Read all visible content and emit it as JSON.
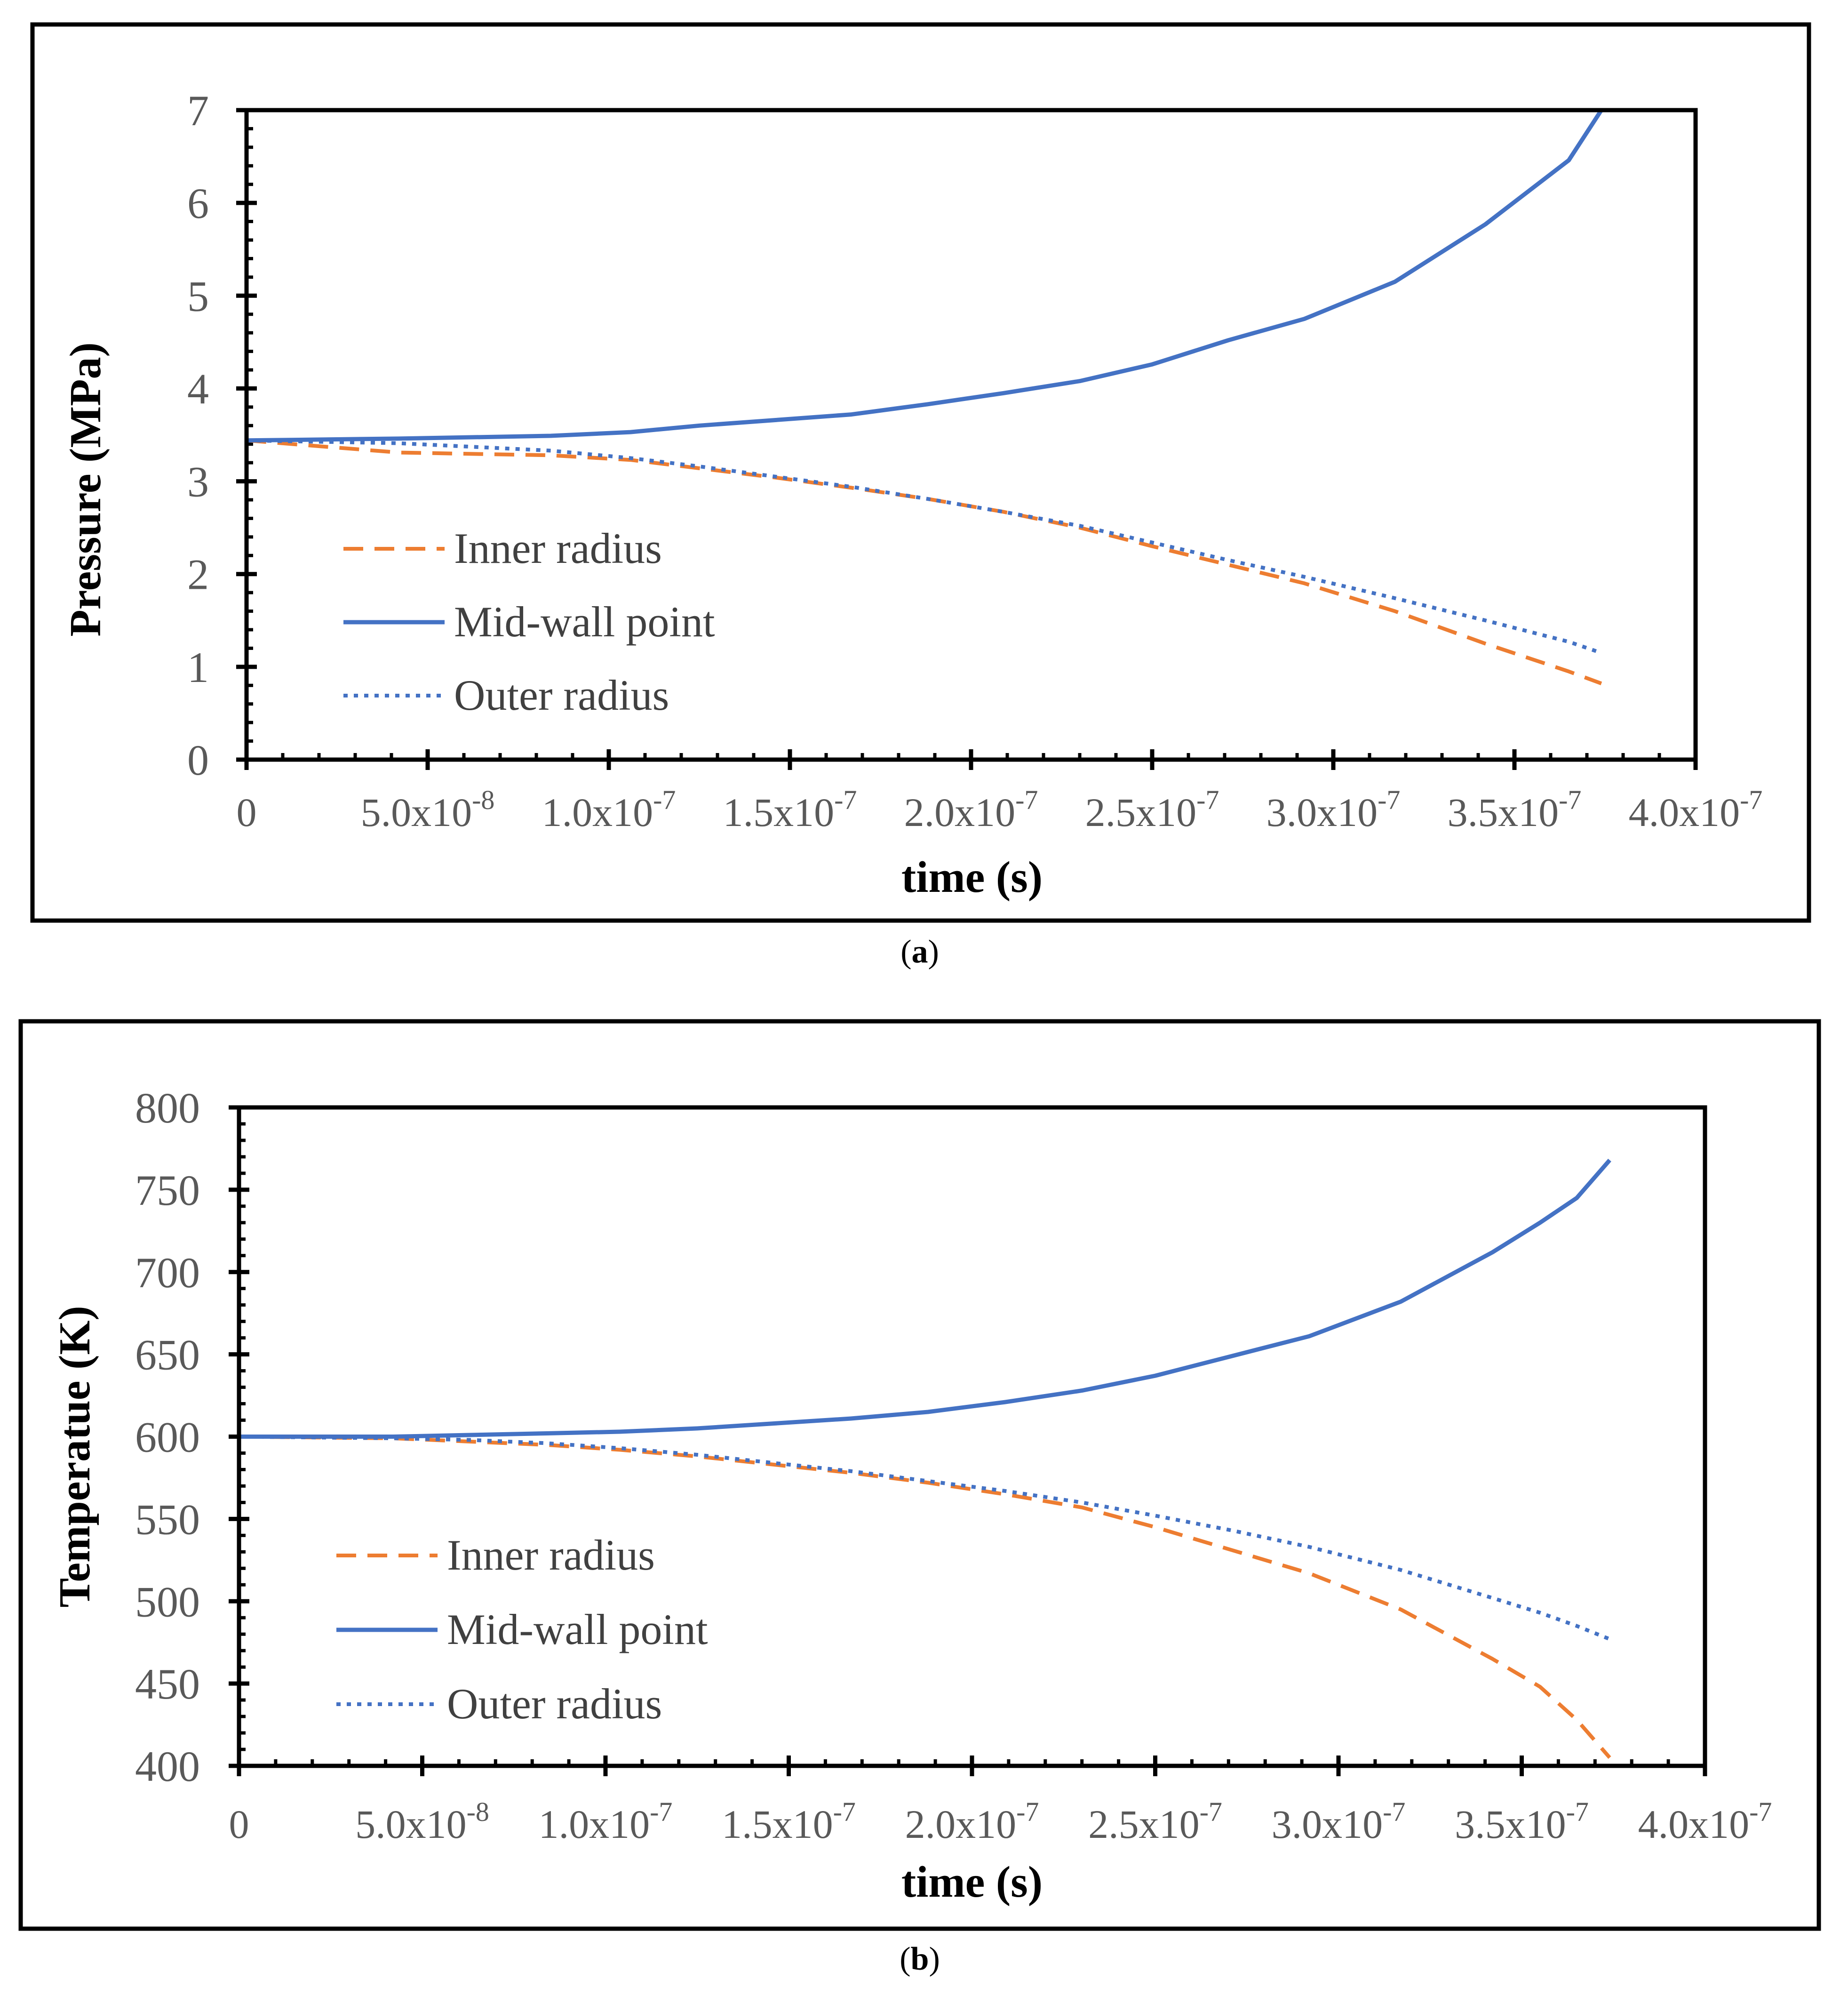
{
  "chart_data": [
    {
      "type": "line",
      "panel_label": "a",
      "xlabel": "time (s)",
      "ylabel": "Pressure (MPa)",
      "xlim": [
        0,
        4e-07
      ],
      "ylim": [
        0,
        7
      ],
      "x_ticks": [
        {
          "value": 0,
          "mantissa": "0",
          "exponent": ""
        },
        {
          "value": 5e-08,
          "mantissa": "5.0x10",
          "exponent": "-8"
        },
        {
          "value": 1e-07,
          "mantissa": "1.0x10",
          "exponent": "-7"
        },
        {
          "value": 1.5e-07,
          "mantissa": "1.5x10",
          "exponent": "-7"
        },
        {
          "value": 2e-07,
          "mantissa": "2.0x10",
          "exponent": "-7"
        },
        {
          "value": 2.5e-07,
          "mantissa": "2.5x10",
          "exponent": "-7"
        },
        {
          "value": 3e-07,
          "mantissa": "3.0x10",
          "exponent": "-7"
        },
        {
          "value": 3.5e-07,
          "mantissa": "3.5x10",
          "exponent": "-7"
        },
        {
          "value": 4e-07,
          "mantissa": "4.0x10",
          "exponent": "-7"
        }
      ],
      "y_ticks": [
        "0",
        "1",
        "2",
        "3",
        "4",
        "5",
        "6",
        "7"
      ],
      "y_tick_values": [
        0,
        1,
        2,
        3,
        4,
        5,
        6,
        7
      ],
      "legend_position": "lower-left",
      "series": [
        {
          "name": "Inner radius",
          "style": "dashed",
          "color": "#ED7D31",
          "x": [
            0,
            4.2e-08,
            8.4e-08,
            1.06e-07,
            1.25e-07,
            1.46e-07,
            1.67e-07,
            1.88e-07,
            2.09e-07,
            2.3e-07,
            2.5e-07,
            2.71e-07,
            2.92e-07,
            3.17e-07,
            3.42e-07,
            3.65e-07,
            3.74e-07
          ],
          "values": [
            3.44,
            3.31,
            3.28,
            3.23,
            3.14,
            3.04,
            2.93,
            2.81,
            2.67,
            2.5,
            2.3,
            2.1,
            1.9,
            1.6,
            1.25,
            0.95,
            0.82
          ]
        },
        {
          "name": "Mid-wall point",
          "style": "solid",
          "color": "#4472C4",
          "x": [
            0,
            4.2e-08,
            8.4e-08,
            1.06e-07,
            1.25e-07,
            1.46e-07,
            1.67e-07,
            1.88e-07,
            2.09e-07,
            2.3e-07,
            2.5e-07,
            2.71e-07,
            2.92e-07,
            3.17e-07,
            3.42e-07,
            3.65e-07,
            3.74e-07
          ],
          "values": [
            3.44,
            3.46,
            3.49,
            3.53,
            3.6,
            3.66,
            3.72,
            3.83,
            3.95,
            4.08,
            4.26,
            4.52,
            4.75,
            5.15,
            5.77,
            6.46,
            7.0
          ]
        },
        {
          "name": "Outer radius",
          "style": "dotted",
          "color": "#4472C4",
          "x": [
            0,
            4.2e-08,
            8.4e-08,
            1.06e-07,
            1.25e-07,
            1.46e-07,
            1.67e-07,
            1.88e-07,
            2.09e-07,
            2.3e-07,
            2.5e-07,
            2.71e-07,
            2.92e-07,
            3.17e-07,
            3.42e-07,
            3.65e-07,
            3.74e-07
          ],
          "values": [
            3.44,
            3.41,
            3.33,
            3.25,
            3.16,
            3.05,
            2.94,
            2.81,
            2.67,
            2.52,
            2.34,
            2.15,
            1.97,
            1.74,
            1.5,
            1.27,
            1.15
          ]
        }
      ]
    },
    {
      "type": "line",
      "panel_label": "b",
      "xlabel": "time (s)",
      "ylabel": "Temperatue (K)",
      "xlim": [
        0,
        4e-07
      ],
      "ylim": [
        400,
        800
      ],
      "x_ticks": [
        {
          "value": 0,
          "mantissa": "0",
          "exponent": ""
        },
        {
          "value": 5e-08,
          "mantissa": "5.0x10",
          "exponent": "-8"
        },
        {
          "value": 1e-07,
          "mantissa": "1.0x10",
          "exponent": "-7"
        },
        {
          "value": 1.5e-07,
          "mantissa": "1.5x10",
          "exponent": "-7"
        },
        {
          "value": 2e-07,
          "mantissa": "2.0x10",
          "exponent": "-7"
        },
        {
          "value": 2.5e-07,
          "mantissa": "2.5x10",
          "exponent": "-7"
        },
        {
          "value": 3e-07,
          "mantissa": "3.0x10",
          "exponent": "-7"
        },
        {
          "value": 3.5e-07,
          "mantissa": "3.5x10",
          "exponent": "-7"
        },
        {
          "value": 4e-07,
          "mantissa": "4.0x10",
          "exponent": "-7"
        }
      ],
      "y_ticks": [
        "400",
        "450",
        "500",
        "550",
        "600",
        "650",
        "700",
        "750",
        "800"
      ],
      "y_tick_values": [
        400,
        450,
        500,
        550,
        600,
        650,
        700,
        750,
        800
      ],
      "legend_position": "lower-left",
      "series": [
        {
          "name": "Inner radius",
          "style": "dashed",
          "color": "#ED7D31",
          "x": [
            0,
            4.2e-08,
            6.3e-08,
            8.4e-08,
            1.04e-07,
            1.25e-07,
            1.46e-07,
            1.67e-07,
            1.88e-07,
            2.09e-07,
            2.3e-07,
            2.5e-07,
            2.71e-07,
            2.92e-07,
            3.17e-07,
            3.42e-07,
            3.55e-07,
            3.65e-07,
            3.74e-07
          ],
          "values": [
            600,
            599,
            597,
            595,
            592,
            588,
            583,
            578,
            572,
            565,
            557,
            545,
            531,
            517,
            495,
            465,
            448,
            428,
            405
          ]
        },
        {
          "name": "Mid-wall point",
          "style": "solid",
          "color": "#4472C4",
          "x": [
            0,
            4.2e-08,
            6.3e-08,
            8.4e-08,
            1.04e-07,
            1.25e-07,
            1.46e-07,
            1.67e-07,
            1.88e-07,
            2.09e-07,
            2.3e-07,
            2.5e-07,
            2.71e-07,
            2.92e-07,
            3.17e-07,
            3.42e-07,
            3.55e-07,
            3.65e-07,
            3.74e-07
          ],
          "values": [
            600,
            600,
            601,
            602,
            603,
            605,
            608,
            611,
            615,
            621,
            628,
            637,
            649,
            661,
            682,
            712,
            730,
            745,
            768
          ]
        },
        {
          "name": "Outer radius",
          "style": "dotted",
          "color": "#4472C4",
          "x": [
            0,
            4.2e-08,
            6.3e-08,
            8.4e-08,
            1.04e-07,
            1.25e-07,
            1.46e-07,
            1.67e-07,
            1.88e-07,
            2.09e-07,
            2.3e-07,
            2.5e-07,
            2.71e-07,
            2.92e-07,
            3.17e-07,
            3.42e-07,
            3.55e-07,
            3.65e-07,
            3.74e-07
          ],
          "values": [
            600,
            599,
            598,
            596,
            593,
            589,
            584,
            579,
            573,
            567,
            560,
            552,
            543,
            533,
            519,
            502,
            493,
            485,
            477
          ]
        }
      ]
    }
  ]
}
